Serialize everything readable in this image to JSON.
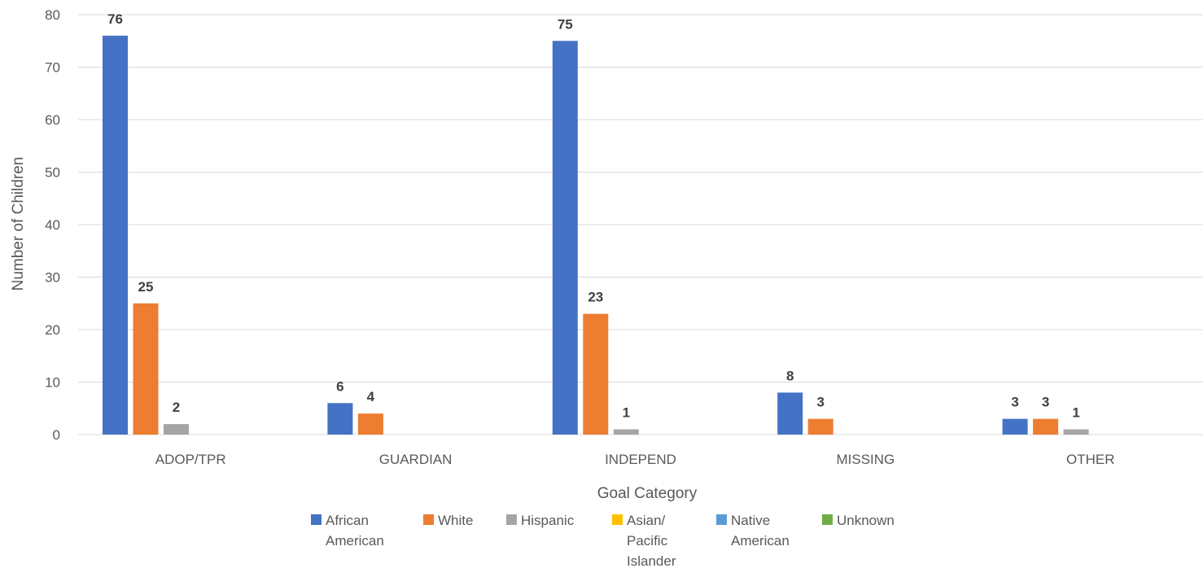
{
  "chart_data": {
    "type": "bar",
    "xlabel": "Goal Category",
    "ylabel": "Number of Children",
    "ylim": [
      0,
      80
    ],
    "yticks": [
      0,
      10,
      20,
      30,
      40,
      50,
      60,
      70,
      80
    ],
    "grid": true,
    "legend_position": "bottom",
    "categories": [
      "ADOP/TPR",
      "GUARDIAN",
      "INDEPEND",
      "MISSING",
      "OTHER"
    ],
    "series": [
      {
        "name": "African American",
        "legend_lines": [
          "African",
          "American"
        ],
        "color": "#4472C4",
        "values": [
          76,
          6,
          75,
          8,
          3
        ]
      },
      {
        "name": "White",
        "legend_lines": [
          "White"
        ],
        "color": "#ED7D31",
        "values": [
          25,
          4,
          23,
          3,
          3
        ]
      },
      {
        "name": "Hispanic",
        "legend_lines": [
          "Hispanic"
        ],
        "color": "#A5A5A5",
        "values": [
          2,
          0,
          1,
          0,
          1
        ]
      },
      {
        "name": "Asian/ Pacific Islander",
        "legend_lines": [
          "Asian/",
          "Pacific",
          "Islander"
        ],
        "color": "#FFC000",
        "values": [
          0,
          0,
          0,
          0,
          0
        ]
      },
      {
        "name": "Native American",
        "legend_lines": [
          "Native",
          "American"
        ],
        "color": "#5B9BD5",
        "values": [
          0,
          0,
          0,
          0,
          0
        ]
      },
      {
        "name": "Unknown",
        "legend_lines": [
          "Unknown"
        ],
        "color": "#70AD47",
        "values": [
          0,
          0,
          0,
          0,
          0
        ]
      }
    ]
  }
}
